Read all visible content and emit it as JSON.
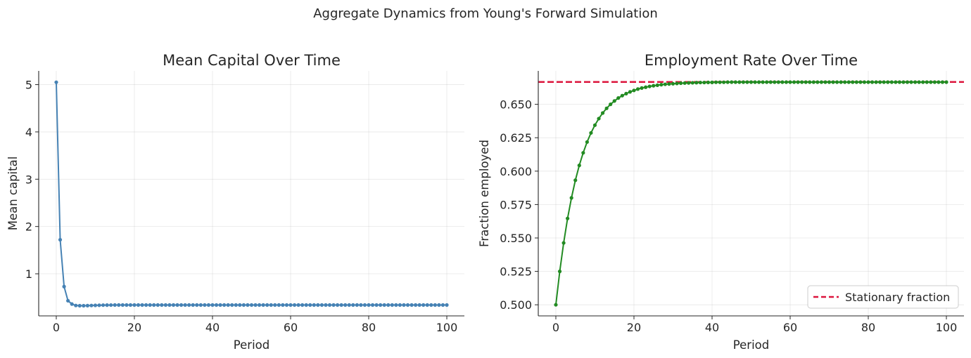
{
  "figure": {
    "suptitle": "Aggregate Dynamics from Young's Forward Simulation"
  },
  "chart_data": [
    {
      "type": "line",
      "title": "Mean Capital Over Time",
      "xlabel": "Period",
      "ylabel": "Mean capital",
      "xlim": [
        -4.5,
        104.5
      ],
      "ylim": [
        0.11,
        5.29
      ],
      "xticks": [
        0,
        20,
        40,
        60,
        80,
        100
      ],
      "yticks": [
        1,
        2,
        3,
        4,
        5
      ],
      "grid": true,
      "legend": null,
      "color": "#4682b4",
      "x_start": 0,
      "x_step": 1,
      "series": [
        {
          "name": "",
          "values": [
            5.05,
            1.72,
            0.73,
            0.43,
            0.36,
            0.33,
            0.325,
            0.325,
            0.327,
            0.33,
            0.333,
            0.335,
            0.337,
            0.338,
            0.339,
            0.34,
            0.34,
            0.34,
            0.34,
            0.34,
            0.34,
            0.34,
            0.34,
            0.34,
            0.34,
            0.34,
            0.34,
            0.34,
            0.34,
            0.34,
            0.34,
            0.34,
            0.34,
            0.34,
            0.34,
            0.34,
            0.34,
            0.34,
            0.34,
            0.34,
            0.34,
            0.34,
            0.34,
            0.34,
            0.34,
            0.34,
            0.34,
            0.34,
            0.34,
            0.34,
            0.34,
            0.34,
            0.34,
            0.34,
            0.34,
            0.34,
            0.34,
            0.34,
            0.34,
            0.34,
            0.34,
            0.34,
            0.34,
            0.34,
            0.34,
            0.34,
            0.34,
            0.34,
            0.34,
            0.34,
            0.34,
            0.34,
            0.34,
            0.34,
            0.34,
            0.34,
            0.34,
            0.34,
            0.34,
            0.34,
            0.34,
            0.34,
            0.34,
            0.34,
            0.34,
            0.34,
            0.34,
            0.34,
            0.34,
            0.34,
            0.34,
            0.34,
            0.34,
            0.34,
            0.34,
            0.34,
            0.34,
            0.34,
            0.34,
            0.34,
            0.34
          ]
        }
      ]
    },
    {
      "type": "line",
      "title": "Employment Rate Over Time",
      "xlabel": "Period",
      "ylabel": "Fraction employed",
      "xlim": [
        -4.5,
        104.5
      ],
      "ylim": [
        0.4917,
        0.675
      ],
      "xticks": [
        0,
        20,
        40,
        60,
        80,
        100
      ],
      "yticks": [
        0.5,
        0.525,
        0.55,
        0.575,
        0.6,
        0.625,
        0.65
      ],
      "ytick_labels": [
        "0.500",
        "0.525",
        "0.550",
        "0.575",
        "0.600",
        "0.625",
        "0.650"
      ],
      "grid": true,
      "legend": "lower right",
      "color": "#228b22",
      "x_start": 0,
      "x_step": 1,
      "series": [
        {
          "name": "",
          "values": [
            0.5,
            0.525,
            0.5463,
            0.5646,
            0.58,
            0.5932,
            0.6043,
            0.6137,
            0.6218,
            0.6286,
            0.6344,
            0.6393,
            0.6435,
            0.647,
            0.65,
            0.6525,
            0.6547,
            0.6565,
            0.658,
            0.6593,
            0.6604,
            0.6614,
            0.6622,
            0.6628,
            0.6634,
            0.6639,
            0.6643,
            0.6647,
            0.665,
            0.6652,
            0.6654,
            0.6656,
            0.6658,
            0.6659,
            0.666,
            0.6661,
            0.6662,
            0.6663,
            0.6663,
            0.6664,
            0.6664,
            0.6665,
            0.6665,
            0.6665,
            0.6666,
            0.6666,
            0.6666,
            0.6666,
            0.6666,
            0.6666,
            0.6666,
            0.6666,
            0.6666,
            0.6666,
            0.6666,
            0.6666,
            0.6666,
            0.6666,
            0.6666,
            0.6666,
            0.6666,
            0.6666,
            0.6666,
            0.6666,
            0.6666,
            0.6666,
            0.6666,
            0.6666,
            0.6666,
            0.6666,
            0.6666,
            0.6666,
            0.6666,
            0.6666,
            0.6666,
            0.6666,
            0.6666,
            0.6666,
            0.6666,
            0.6666,
            0.6666,
            0.6666,
            0.6666,
            0.6666,
            0.6666,
            0.6666,
            0.6666,
            0.6666,
            0.6666,
            0.6666,
            0.6666,
            0.6666,
            0.6666,
            0.6666,
            0.6666,
            0.6666,
            0.6666,
            0.6666,
            0.6666,
            0.6666,
            0.6666
          ]
        }
      ],
      "reference_lines": [
        {
          "name": "Stationary fraction",
          "y": 0.6667,
          "color": "#dc143c",
          "style": "dashed"
        }
      ]
    }
  ]
}
